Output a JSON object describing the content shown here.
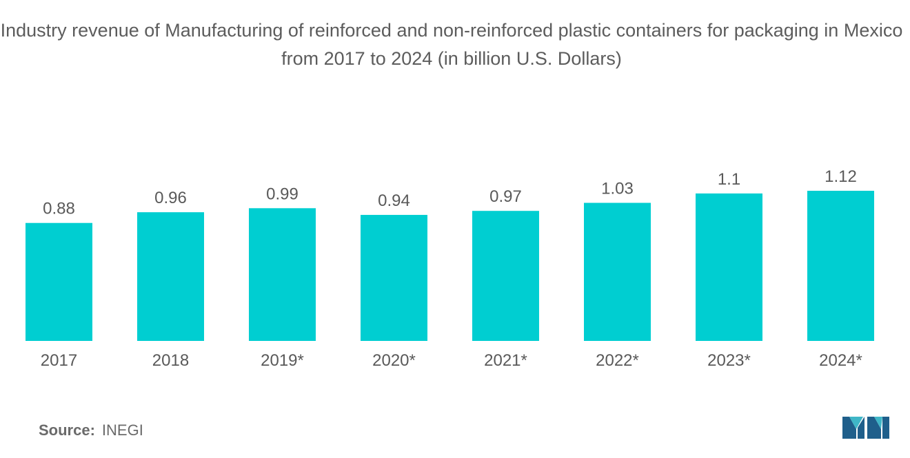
{
  "title": "Industry revenue of Manufacturing of reinforced and non-reinforced plastic containers for packaging in Mexico from 2017 to 2024 (in billion U.S. Dollars)",
  "source": {
    "label": "Source:",
    "value": "INEGI"
  },
  "colors": {
    "bar": "#00CED1",
    "text": "#595959",
    "logo_dark": "#1f5f8b",
    "logo_light": "#3fb6c7"
  },
  "chart_data": {
    "type": "bar",
    "categories": [
      "2017",
      "2018",
      "2019*",
      "2020*",
      "2021*",
      "2022*",
      "2023*",
      "2024*"
    ],
    "values": [
      0.88,
      0.96,
      0.99,
      0.94,
      0.97,
      1.03,
      1.1,
      1.12
    ],
    "value_labels": [
      "0.88",
      "0.96",
      "0.99",
      "0.94",
      "0.97",
      "1.03",
      "1.1",
      "1.12"
    ],
    "xlabel": "",
    "ylabel": "",
    "ylim": [
      0,
      1.12
    ],
    "grid": false,
    "legend": "none"
  }
}
